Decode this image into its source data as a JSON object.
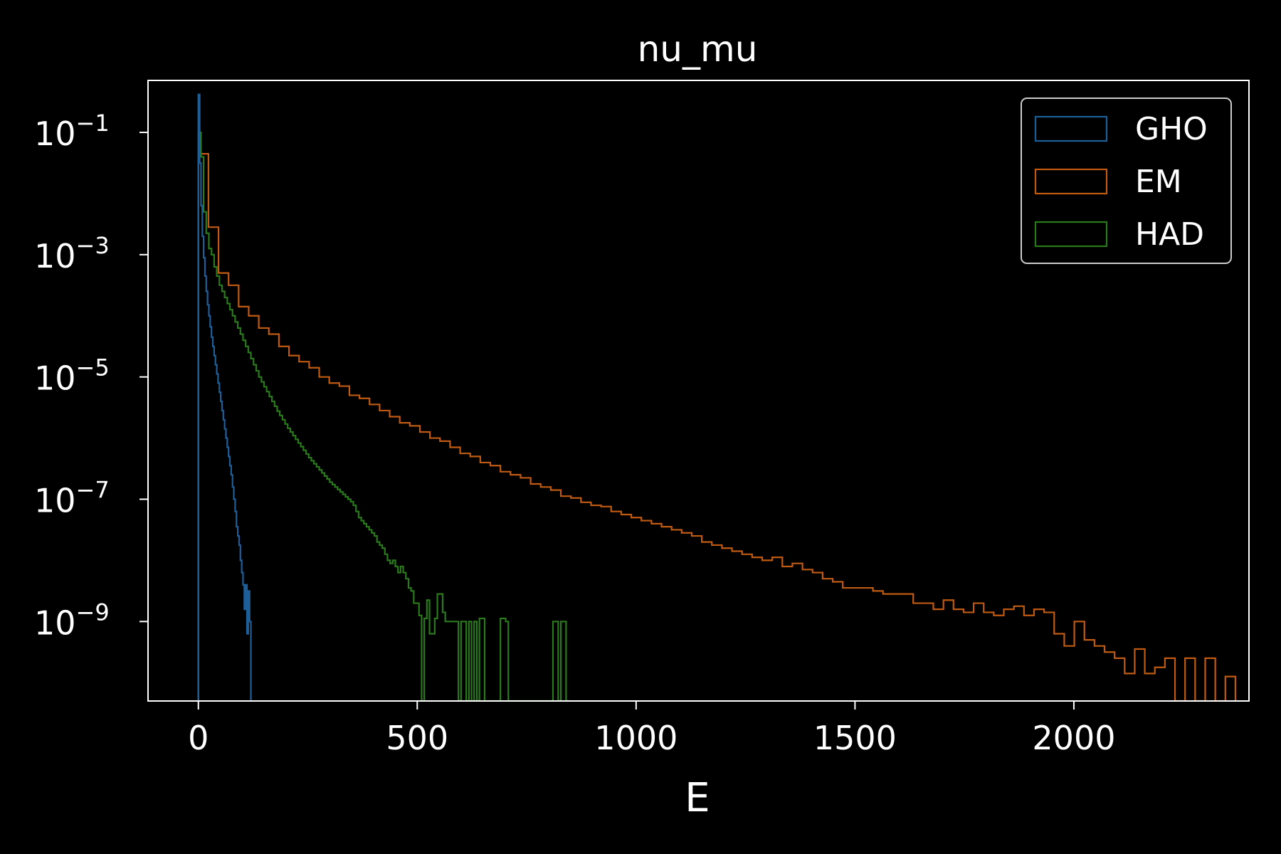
{
  "chart_data": {
    "type": "histogram",
    "title": "nu_mu",
    "xlabel": "E",
    "ylabel": "",
    "xlim": [
      -115,
      2400
    ],
    "ylim_log10": [
      -10.3,
      -0.15
    ],
    "yscale": "log",
    "xticks": [
      0,
      500,
      1000,
      1500,
      2000
    ],
    "yticks": [
      {
        "base": "10",
        "exp": "−1",
        "log10": -1
      },
      {
        "base": "10",
        "exp": "−3",
        "log10": -3
      },
      {
        "base": "10",
        "exp": "−5",
        "log10": -5
      },
      {
        "base": "10",
        "exp": "−7",
        "log10": -7
      },
      {
        "base": "10",
        "exp": "−9",
        "log10": -9
      }
    ],
    "legend_position": "top-right",
    "series": [
      {
        "name": "GHO",
        "color": "#1f5f99",
        "log10_density": [
          [
            0,
            -0.38
          ],
          [
            3,
            -1.5
          ],
          [
            6,
            -2.2
          ],
          [
            9,
            -2.7
          ],
          [
            12,
            -3.05
          ],
          [
            15,
            -3.35
          ],
          [
            18,
            -3.6
          ],
          [
            21,
            -3.82
          ],
          [
            24,
            -4.0
          ],
          [
            27,
            -4.18
          ],
          [
            30,
            -4.35
          ],
          [
            33,
            -4.5
          ],
          [
            36,
            -4.65
          ],
          [
            39,
            -4.8
          ],
          [
            42,
            -4.95
          ],
          [
            45,
            -5.1
          ],
          [
            48,
            -5.25
          ],
          [
            51,
            -5.4
          ],
          [
            54,
            -5.55
          ],
          [
            57,
            -5.7
          ],
          [
            60,
            -5.85
          ],
          [
            63,
            -6.0
          ],
          [
            66,
            -6.15
          ],
          [
            69,
            -6.3
          ],
          [
            72,
            -6.45
          ],
          [
            75,
            -6.6
          ],
          [
            78,
            -6.8
          ],
          [
            81,
            -7.0
          ],
          [
            84,
            -7.2
          ],
          [
            87,
            -7.45
          ],
          [
            90,
            -7.6
          ],
          [
            93,
            -7.75
          ],
          [
            96,
            -8.0
          ],
          [
            99,
            -8.2
          ],
          [
            102,
            -8.4
          ],
          [
            105,
            -8.8
          ],
          [
            108,
            -8.4
          ],
          [
            111,
            -9.2
          ],
          [
            114,
            -8.5
          ],
          [
            117,
            -9.0
          ]
        ],
        "bin_width": 3
      },
      {
        "name": "EM",
        "color": "#c05a12",
        "log10_density": [
          [
            0,
            -1.35
          ],
          [
            23,
            -2.55
          ],
          [
            46,
            -3.3
          ],
          [
            69,
            -3.5
          ],
          [
            92,
            -3.85
          ],
          [
            115,
            -4.0
          ],
          [
            138,
            -4.2
          ],
          [
            161,
            -4.3
          ],
          [
            184,
            -4.5
          ],
          [
            207,
            -4.65
          ],
          [
            230,
            -4.75
          ],
          [
            253,
            -4.85
          ],
          [
            276,
            -5.0
          ],
          [
            299,
            -5.1
          ],
          [
            322,
            -5.15
          ],
          [
            345,
            -5.3
          ],
          [
            368,
            -5.35
          ],
          [
            391,
            -5.45
          ],
          [
            414,
            -5.55
          ],
          [
            437,
            -5.65
          ],
          [
            460,
            -5.75
          ],
          [
            483,
            -5.8
          ],
          [
            506,
            -5.9
          ],
          [
            529,
            -6.0
          ],
          [
            552,
            -6.05
          ],
          [
            575,
            -6.15
          ],
          [
            598,
            -6.25
          ],
          [
            621,
            -6.3
          ],
          [
            644,
            -6.4
          ],
          [
            667,
            -6.45
          ],
          [
            690,
            -6.55
          ],
          [
            713,
            -6.6
          ],
          [
            736,
            -6.65
          ],
          [
            759,
            -6.75
          ],
          [
            782,
            -6.8
          ],
          [
            805,
            -6.85
          ],
          [
            828,
            -6.95
          ],
          [
            851,
            -6.98
          ],
          [
            874,
            -7.05
          ],
          [
            897,
            -7.1
          ],
          [
            920,
            -7.12
          ],
          [
            943,
            -7.2
          ],
          [
            966,
            -7.25
          ],
          [
            989,
            -7.3
          ],
          [
            1012,
            -7.35
          ],
          [
            1035,
            -7.4
          ],
          [
            1058,
            -7.45
          ],
          [
            1081,
            -7.5
          ],
          [
            1104,
            -7.55
          ],
          [
            1127,
            -7.6
          ],
          [
            1150,
            -7.7
          ],
          [
            1173,
            -7.75
          ],
          [
            1196,
            -7.8
          ],
          [
            1219,
            -7.85
          ],
          [
            1242,
            -7.9
          ],
          [
            1265,
            -7.95
          ],
          [
            1288,
            -8.0
          ],
          [
            1311,
            -7.95
          ],
          [
            1334,
            -8.1
          ],
          [
            1357,
            -8.05
          ],
          [
            1380,
            -8.15
          ],
          [
            1403,
            -8.2
          ],
          [
            1426,
            -8.3
          ],
          [
            1449,
            -8.35
          ],
          [
            1472,
            -8.45
          ],
          [
            1495,
            -8.45
          ],
          [
            1518,
            -8.45
          ],
          [
            1541,
            -8.5
          ],
          [
            1564,
            -8.55
          ],
          [
            1587,
            -8.55
          ],
          [
            1610,
            -8.55
          ],
          [
            1633,
            -8.7
          ],
          [
            1656,
            -8.7
          ],
          [
            1679,
            -8.8
          ],
          [
            1702,
            -8.65
          ],
          [
            1725,
            -8.8
          ],
          [
            1748,
            -8.85
          ],
          [
            1771,
            -8.7
          ],
          [
            1794,
            -8.85
          ],
          [
            1817,
            -8.9
          ],
          [
            1840,
            -8.8
          ],
          [
            1863,
            -8.75
          ],
          [
            1886,
            -8.9
          ],
          [
            1909,
            -8.8
          ],
          [
            1932,
            -8.85
          ],
          [
            1955,
            -9.2
          ],
          [
            1978,
            -9.4
          ],
          [
            2001,
            -9.0
          ],
          [
            2024,
            -9.3
          ],
          [
            2047,
            -9.4
          ],
          [
            2070,
            -9.5
          ],
          [
            2093,
            -9.6
          ],
          [
            2116,
            -9.85
          ],
          [
            2139,
            -9.45
          ],
          [
            2162,
            -9.85
          ],
          [
            2185,
            -9.75
          ],
          [
            2208,
            -9.6
          ],
          [
            2231,
            -10.3
          ],
          [
            2254,
            -9.6
          ],
          [
            2277,
            -10.3
          ],
          [
            2300,
            -9.6
          ],
          [
            2323,
            -10.3
          ],
          [
            2346,
            -9.9
          ]
        ],
        "bin_width": 23
      },
      {
        "name": "HAD",
        "color": "#2a7a1c",
        "log10_density": [
          [
            0,
            -1.0
          ],
          [
            6,
            -1.4
          ],
          [
            12,
            -2.3
          ],
          [
            18,
            -2.65
          ],
          [
            24,
            -2.9
          ],
          [
            30,
            -3.0
          ],
          [
            36,
            -3.2
          ],
          [
            42,
            -3.35
          ],
          [
            48,
            -3.5
          ],
          [
            54,
            -3.6
          ],
          [
            60,
            -3.7
          ],
          [
            66,
            -3.8
          ],
          [
            72,
            -3.9
          ],
          [
            78,
            -4.0
          ],
          [
            84,
            -4.1
          ],
          [
            90,
            -4.2
          ],
          [
            96,
            -4.3
          ],
          [
            102,
            -4.4
          ],
          [
            108,
            -4.5
          ],
          [
            114,
            -4.6
          ],
          [
            120,
            -4.7
          ],
          [
            126,
            -4.8
          ],
          [
            132,
            -4.9
          ],
          [
            138,
            -5.0
          ],
          [
            144,
            -5.08
          ],
          [
            150,
            -5.16
          ],
          [
            156,
            -5.24
          ],
          [
            162,
            -5.32
          ],
          [
            168,
            -5.4
          ],
          [
            174,
            -5.48
          ],
          [
            180,
            -5.56
          ],
          [
            186,
            -5.63
          ],
          [
            192,
            -5.7
          ],
          [
            198,
            -5.77
          ],
          [
            204,
            -5.84
          ],
          [
            210,
            -5.9
          ],
          [
            216,
            -5.96
          ],
          [
            222,
            -6.02
          ],
          [
            228,
            -6.08
          ],
          [
            234,
            -6.14
          ],
          [
            240,
            -6.2
          ],
          [
            246,
            -6.26
          ],
          [
            252,
            -6.32
          ],
          [
            258,
            -6.37
          ],
          [
            264,
            -6.42
          ],
          [
            270,
            -6.47
          ],
          [
            276,
            -6.52
          ],
          [
            282,
            -6.57
          ],
          [
            288,
            -6.62
          ],
          [
            294,
            -6.67
          ],
          [
            300,
            -6.72
          ],
          [
            306,
            -6.76
          ],
          [
            312,
            -6.8
          ],
          [
            318,
            -6.84
          ],
          [
            324,
            -6.88
          ],
          [
            330,
            -6.92
          ],
          [
            336,
            -6.96
          ],
          [
            342,
            -7.0
          ],
          [
            348,
            -7.04
          ],
          [
            354,
            -7.1
          ],
          [
            360,
            -7.2
          ],
          [
            366,
            -7.3
          ],
          [
            372,
            -7.35
          ],
          [
            378,
            -7.4
          ],
          [
            384,
            -7.45
          ],
          [
            390,
            -7.5
          ],
          [
            396,
            -7.55
          ],
          [
            402,
            -7.6
          ],
          [
            408,
            -7.7
          ],
          [
            414,
            -7.75
          ],
          [
            420,
            -7.8
          ],
          [
            426,
            -7.9
          ],
          [
            432,
            -8.0
          ],
          [
            438,
            -8.05
          ],
          [
            444,
            -8.0
          ],
          [
            450,
            -8.1
          ],
          [
            456,
            -8.2
          ],
          [
            462,
            -8.1
          ],
          [
            468,
            -8.2
          ],
          [
            474,
            -8.3
          ],
          [
            480,
            -8.45
          ],
          [
            486,
            -8.5
          ],
          [
            492,
            -8.7
          ],
          [
            498,
            -8.7
          ],
          [
            504,
            -8.9
          ],
          [
            510,
            -10.3
          ],
          [
            516,
            -8.95
          ],
          [
            522,
            -8.65
          ],
          [
            528,
            -9.2
          ],
          [
            534,
            -9.2
          ],
          [
            540,
            -8.95
          ],
          [
            546,
            -8.55
          ],
          [
            552,
            -8.55
          ],
          [
            558,
            -8.85
          ],
          [
            564,
            -9.0
          ],
          [
            570,
            -9.0
          ],
          [
            576,
            -9.0
          ],
          [
            582,
            -9.0
          ],
          [
            588,
            -9.0
          ],
          [
            594,
            -10.3
          ],
          [
            600,
            -9.0
          ],
          [
            606,
            -9.0
          ],
          [
            612,
            -10.3
          ],
          [
            618,
            -9.0
          ],
          [
            624,
            -10.3
          ],
          [
            630,
            -9.0
          ],
          [
            636,
            -10.3
          ],
          [
            642,
            -8.95
          ],
          [
            648,
            -8.95
          ],
          [
            654,
            -10.3
          ],
          [
            660,
            -10.3
          ],
          [
            666,
            -10.3
          ],
          [
            672,
            -10.3
          ],
          [
            678,
            -10.3
          ],
          [
            684,
            -10.3
          ],
          [
            690,
            -8.95
          ],
          [
            696,
            -8.95
          ],
          [
            702,
            -9.0
          ],
          [
            708,
            -10.3
          ],
          [
            714,
            -10.3
          ],
          [
            720,
            -10.3
          ],
          [
            726,
            -10.3
          ],
          [
            732,
            -10.3
          ],
          [
            738,
            -10.3
          ],
          [
            744,
            -10.3
          ],
          [
            750,
            -10.3
          ],
          [
            756,
            -10.3
          ],
          [
            762,
            -10.3
          ],
          [
            768,
            -10.3
          ],
          [
            774,
            -10.3
          ],
          [
            780,
            -10.3
          ],
          [
            786,
            -10.3
          ],
          [
            792,
            -10.3
          ],
          [
            798,
            -10.3
          ],
          [
            804,
            -10.3
          ],
          [
            810,
            -9.0
          ],
          [
            816,
            -9.0
          ],
          [
            822,
            -10.3
          ],
          [
            828,
            -9.0
          ],
          [
            834,
            -9.0
          ],
          [
            840,
            -10.3
          ]
        ],
        "bin_width": 6
      }
    ]
  },
  "colors": {
    "background": "#000000",
    "foreground": "#ffffff"
  }
}
